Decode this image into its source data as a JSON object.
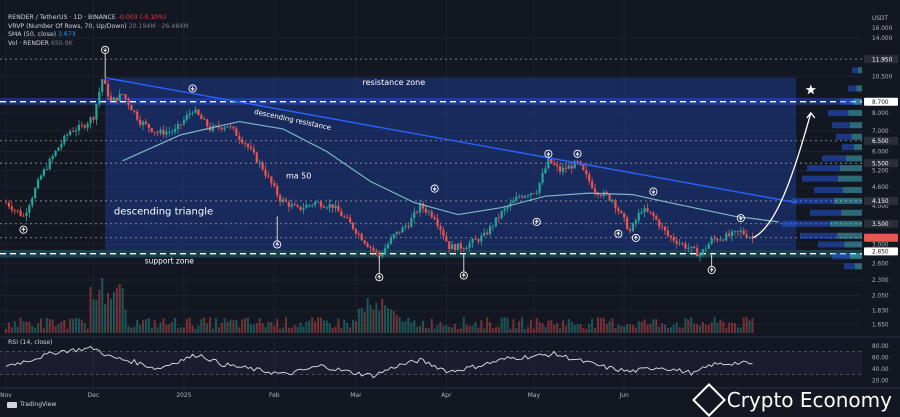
{
  "legend": {
    "symbol_line": "RENDER / TetherUS · 1D · BINANCE",
    "change": "-0.003 (-0.10%)",
    "vrvp_line": "VRVP (Number Of Rows, 70, Up/Down)",
    "vrvp_vals": "20.194M  ·  26.484M",
    "sma_line": "SMA (50, close)",
    "sma_val": "3.673",
    "vol_line": "Vol · RENDER",
    "vol_val": "650.9K"
  },
  "rsi_title": "RSI (14, close)",
  "tv_logo": "TradingView",
  "brand": "Crypto Economy",
  "colors": {
    "up": "#26a69a",
    "down": "#ef5350",
    "bg": "#131722",
    "grid": "#1e222d",
    "triangle": "#1e3a8a",
    "resistance_zone": "#2962ff",
    "axis_text": "#b2b5be"
  },
  "annotations": {
    "resistance_zone": "resistance zone",
    "descending_resistance": "descending resistance",
    "ma50": "ma 50",
    "triangle": "descending triangle",
    "support_zone": "support zone"
  },
  "chart_data": {
    "type": "candlestick",
    "title": "RENDER / TetherUS · 1D · BINANCE",
    "y_axis_unit": "USDT",
    "y_scale": "log",
    "y_ticks": [
      14.0,
      10.5,
      8.0,
      7.0,
      6.0,
      5.2,
      4.6,
      4.0,
      3.5,
      3.0,
      2.6,
      2.3,
      2.05,
      1.83,
      1.65
    ],
    "y_tick_labels": [
      "14.000",
      "10.500",
      "8.000",
      "7.000",
      "6.000",
      "5.200",
      "4.600",
      "4.000",
      "3.500",
      "3.000",
      "2.600",
      "2.300",
      "2.050",
      "1.830",
      "1.650"
    ],
    "top_tick_labels": [
      "USDT",
      "16.000"
    ],
    "highlighted_levels": [
      {
        "label": "11.950",
        "value": 11.95
      },
      {
        "label": "8.700",
        "value": 8.7
      },
      {
        "label": "6.500",
        "value": 6.5
      },
      {
        "label": "5.500",
        "value": 5.5
      },
      {
        "label": "4.150",
        "value": 4.15
      },
      {
        "label": "3.500",
        "value": 3.5
      },
      {
        "label": "3.153",
        "value": 3.153
      },
      {
        "label": "2.850",
        "value": 2.85
      }
    ],
    "x_tick_labels": [
      "Nov",
      "Dec",
      "2025",
      "Feb",
      "Mar",
      "Apr",
      "May",
      "Jun"
    ],
    "x_ticks_day_index": [
      0,
      30,
      61,
      92,
      120,
      151,
      181,
      212
    ],
    "resistance_zone": [
      8.5,
      8.95
    ],
    "support_zone": [
      2.72,
      2.88
    ],
    "descending_resistance": {
      "from": [
        34,
        10.4
      ],
      "to": [
        271,
        4.1
      ]
    },
    "triangle_box": {
      "x_from": 34,
      "x_to": 271,
      "y_low": 2.88
    },
    "sma50": [
      [
        40,
        5.6
      ],
      [
        60,
        6.8
      ],
      [
        80,
        7.5
      ],
      [
        95,
        7.1
      ],
      [
        110,
        6.0
      ],
      [
        125,
        4.8
      ],
      [
        140,
        4.1
      ],
      [
        155,
        3.75
      ],
      [
        170,
        3.95
      ],
      [
        185,
        4.3
      ],
      [
        200,
        4.4
      ],
      [
        215,
        4.35
      ],
      [
        230,
        4.05
      ],
      [
        250,
        3.7
      ],
      [
        265,
        3.55
      ]
    ],
    "ohlc_keypoints": [
      [
        0,
        4.1
      ],
      [
        6,
        3.7
      ],
      [
        12,
        5.0
      ],
      [
        18,
        6.2
      ],
      [
        22,
        7.0
      ],
      [
        26,
        7.2
      ],
      [
        30,
        7.8
      ],
      [
        33,
        10.3
      ],
      [
        36,
        8.7
      ],
      [
        40,
        9.2
      ],
      [
        46,
        7.5
      ],
      [
        52,
        6.9
      ],
      [
        58,
        7.0
      ],
      [
        64,
        8.2
      ],
      [
        70,
        7.1
      ],
      [
        76,
        7.3
      ],
      [
        82,
        6.4
      ],
      [
        88,
        5.3
      ],
      [
        94,
        4.2
      ],
      [
        100,
        3.9
      ],
      [
        106,
        4.1
      ],
      [
        112,
        4.0
      ],
      [
        118,
        3.5
      ],
      [
        124,
        3.0
      ],
      [
        128,
        2.75
      ],
      [
        133,
        3.2
      ],
      [
        138,
        3.5
      ],
      [
        142,
        4.0
      ],
      [
        147,
        3.7
      ],
      [
        152,
        2.95
      ],
      [
        157,
        2.95
      ],
      [
        164,
        3.2
      ],
      [
        170,
        3.8
      ],
      [
        176,
        4.3
      ],
      [
        182,
        4.5
      ],
      [
        186,
        5.6
      ],
      [
        190,
        5.2
      ],
      [
        196,
        5.5
      ],
      [
        202,
        4.5
      ],
      [
        208,
        4.2
      ],
      [
        214,
        3.3
      ],
      [
        218,
        3.9
      ],
      [
        222,
        3.7
      ],
      [
        227,
        3.2
      ],
      [
        232,
        3.0
      ],
      [
        238,
        2.78
      ],
      [
        242,
        3.1
      ],
      [
        248,
        3.2
      ],
      [
        252,
        3.3
      ],
      [
        256,
        3.15
      ]
    ],
    "projection": [
      [
        256,
        3.15
      ],
      [
        264,
        3.4
      ],
      [
        270,
        5.0
      ],
      [
        276,
        8.0
      ]
    ],
    "star_target": [
      276,
      9.5
    ],
    "arrows_down": [
      [
        34,
        12.8
      ],
      [
        64,
        9.6
      ],
      [
        147,
        4.55
      ],
      [
        186,
        5.9
      ],
      [
        196,
        5.9
      ],
      [
        222,
        4.45
      ],
      [
        252,
        3.65
      ]
    ],
    "arrows_up": [
      [
        6,
        3.35
      ],
      [
        93,
        3.0
      ],
      [
        128,
        2.35
      ],
      [
        157,
        2.38
      ],
      [
        182,
        3.55
      ],
      [
        210,
        3.25
      ],
      [
        216,
        3.15
      ],
      [
        242,
        2.48
      ]
    ],
    "volume": "bars in millions, peak ~ Dec and mid-Mar",
    "rsi": {
      "ticks": [
        80.0,
        60.0,
        40.0,
        20.0
      ],
      "tick_labels": [
        "80.00",
        "60.00",
        "40.00",
        "20.00"
      ],
      "bands": [
        30,
        70
      ],
      "keypoints": [
        [
          0,
          45
        ],
        [
          8,
          55
        ],
        [
          18,
          70
        ],
        [
          30,
          76
        ],
        [
          36,
          60
        ],
        [
          44,
          52
        ],
        [
          52,
          40
        ],
        [
          60,
          55
        ],
        [
          66,
          65
        ],
        [
          74,
          48
        ],
        [
          86,
          38
        ],
        [
          96,
          30
        ],
        [
          108,
          45
        ],
        [
          118,
          34
        ],
        [
          126,
          28
        ],
        [
          134,
          45
        ],
        [
          142,
          55
        ],
        [
          152,
          35
        ],
        [
          162,
          45
        ],
        [
          172,
          58
        ],
        [
          182,
          62
        ],
        [
          188,
          66
        ],
        [
          196,
          55
        ],
        [
          206,
          42
        ],
        [
          214,
          35
        ],
        [
          224,
          43
        ],
        [
          236,
          32
        ],
        [
          242,
          47
        ],
        [
          250,
          50
        ],
        [
          256,
          49
        ]
      ]
    }
  }
}
